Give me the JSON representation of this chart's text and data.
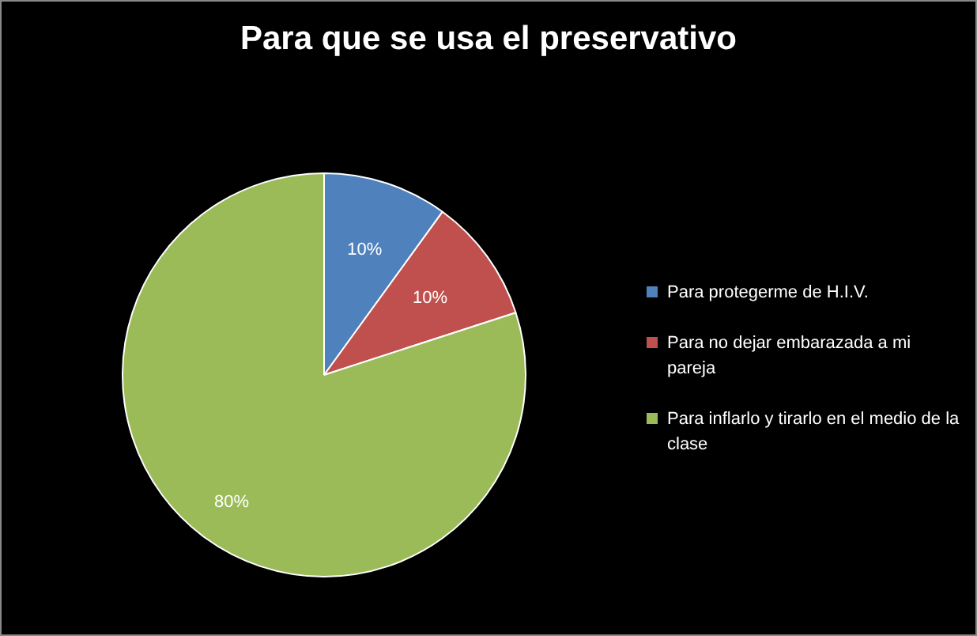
{
  "chart_data": {
    "type": "pie",
    "title": "Para que se usa el preservativo",
    "categories": [
      "Para protegerme de H.I.V.",
      "Para no dejar embarazada  a mi pareja",
      "Para inflarlo y tirarlo en el medio de la clase"
    ],
    "values": [
      10,
      10,
      80
    ],
    "colors": [
      "#4f81bd",
      "#c0504d",
      "#9bbb59"
    ],
    "value_labels": [
      "10%",
      "10%",
      "80%"
    ],
    "legend": "right"
  }
}
